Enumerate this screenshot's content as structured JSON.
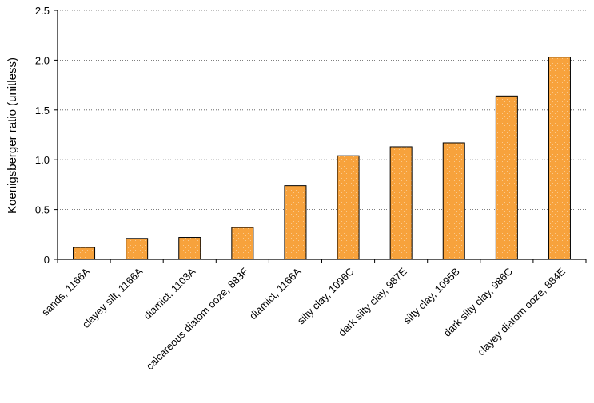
{
  "chart_data": {
    "type": "bar",
    "title": "",
    "xlabel": "",
    "ylabel": "Koenigsberger ratio (unitless)",
    "ylim": [
      0,
      2.5
    ],
    "yticks": [
      0,
      0.5,
      1.0,
      1.5,
      2.0,
      2.5
    ],
    "ytick_labels": [
      "0",
      "0.5",
      "1.0",
      "1.5",
      "2.0",
      "2.5"
    ],
    "grid": "horizontal dotted",
    "categories": [
      "sands, 1166A",
      "clayey silt, 1166A",
      "diamict, 1103A",
      "calcareous diatom ooze, 883F",
      "diamict, 1166A",
      "silty clay, 1096C",
      "dark silty clay, 987E",
      "silty clay, 1095B",
      "dark silty clay, 986C",
      "clayey diatom ooze, 884E"
    ],
    "values": [
      0.12,
      0.21,
      0.22,
      0.32,
      0.74,
      1.04,
      1.13,
      1.17,
      1.64,
      2.03
    ],
    "bar_color": "#F7A23C",
    "bar_edge_color": "#000000"
  }
}
